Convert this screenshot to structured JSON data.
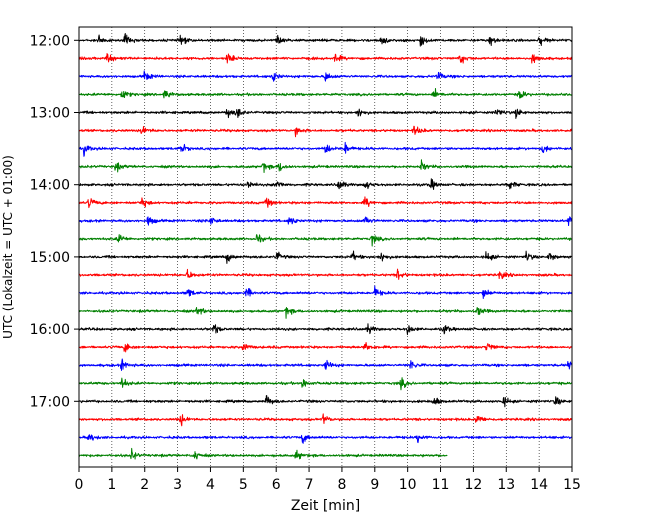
{
  "chart_data": {
    "type": "line",
    "title": "",
    "xlabel": "Zeit  [min]",
    "ylabel": "UTC (Lokalzeit = UTC + 01:00)",
    "xlim": [
      0,
      15
    ],
    "x_ticks": [
      0,
      1,
      2,
      3,
      4,
      5,
      6,
      7,
      8,
      9,
      10,
      11,
      12,
      13,
      14,
      15
    ],
    "x_tick_labels": [
      "0",
      "1",
      "2",
      "3",
      "4",
      "5",
      "6",
      "7",
      "8",
      "9",
      "10",
      "11",
      "12",
      "13",
      "14",
      "15"
    ],
    "y_tick_labels": [
      "12:00",
      "13:00",
      "14:00",
      "15:00",
      "16:00",
      "17:00"
    ],
    "y_tick_rows": [
      0,
      4,
      8,
      12,
      16,
      20
    ],
    "grid": "vertical dotted",
    "row_colors": [
      "#000000",
      "#ff0000",
      "#0000ff",
      "#008000"
    ],
    "rows": [
      {
        "start": "12:00",
        "x_end": 15,
        "events": [
          0.6,
          1.4,
          3.1,
          6.0,
          9.2,
          10.4,
          12.5,
          14.0
        ]
      },
      {
        "start": "12:15",
        "x_end": 15,
        "events": [
          0.85,
          4.5,
          7.8,
          11.6,
          13.8
        ]
      },
      {
        "start": "12:30",
        "x_end": 15,
        "events": [
          2.0,
          5.9,
          7.5,
          10.9
        ]
      },
      {
        "start": "12:45",
        "x_end": 15,
        "events": [
          1.3,
          2.6,
          10.8,
          13.4
        ]
      },
      {
        "start": "13:00",
        "x_end": 15,
        "events": [
          4.5,
          4.8,
          8.5,
          12.7,
          13.3
        ]
      },
      {
        "start": "13:15",
        "x_end": 15,
        "events": [
          1.9,
          6.6,
          10.2
        ]
      },
      {
        "start": "13:30",
        "x_end": 15,
        "events": [
          0.15,
          3.1,
          7.5,
          8.1,
          14.1
        ]
      },
      {
        "start": "13:45",
        "x_end": 15,
        "events": [
          1.1,
          5.6,
          6.1,
          10.4
        ]
      },
      {
        "start": "14:00",
        "x_end": 15,
        "events": [
          5.1,
          6.0,
          7.9,
          8.7,
          10.7,
          13.1
        ]
      },
      {
        "start": "14:15",
        "x_end": 15,
        "events": [
          0.3,
          1.9,
          5.7,
          8.7
        ]
      },
      {
        "start": "14:30",
        "x_end": 15,
        "events": [
          2.1,
          4.0,
          6.4,
          8.7,
          14.9
        ]
      },
      {
        "start": "14:45",
        "x_end": 15,
        "events": [
          1.2,
          5.4,
          8.9
        ]
      },
      {
        "start": "15:00",
        "x_end": 15,
        "events": [
          4.5,
          6.0,
          8.3,
          9.2,
          12.4,
          13.6,
          14.3
        ]
      },
      {
        "start": "15:15",
        "x_end": 15,
        "events": [
          3.3,
          9.7,
          12.8
        ]
      },
      {
        "start": "15:30",
        "x_end": 15,
        "events": [
          3.3,
          5.1,
          9.0,
          12.3
        ]
      },
      {
        "start": "15:45",
        "x_end": 15,
        "events": [
          3.6,
          6.3,
          12.1
        ]
      },
      {
        "start": "16:00",
        "x_end": 15,
        "events": [
          4.1,
          8.8,
          10.0,
          11.1
        ]
      },
      {
        "start": "16:15",
        "x_end": 15,
        "events": [
          1.4,
          5.0,
          8.7,
          12.4
        ]
      },
      {
        "start": "16:30",
        "x_end": 15,
        "events": [
          1.3,
          7.5,
          10.1,
          14.9
        ]
      },
      {
        "start": "16:45",
        "x_end": 15,
        "events": [
          1.3,
          6.8,
          9.8
        ]
      },
      {
        "start": "17:00",
        "x_end": 15,
        "events": [
          5.7,
          10.8,
          12.9,
          14.5
        ]
      },
      {
        "start": "17:15",
        "x_end": 15,
        "events": [
          3.1,
          7.4,
          12.1
        ]
      },
      {
        "start": "17:30",
        "x_end": 15,
        "events": [
          0.3,
          6.8,
          10.3
        ]
      },
      {
        "start": "17:45",
        "x_end": 11.2,
        "events": [
          1.6,
          3.5,
          6.6
        ]
      }
    ]
  }
}
